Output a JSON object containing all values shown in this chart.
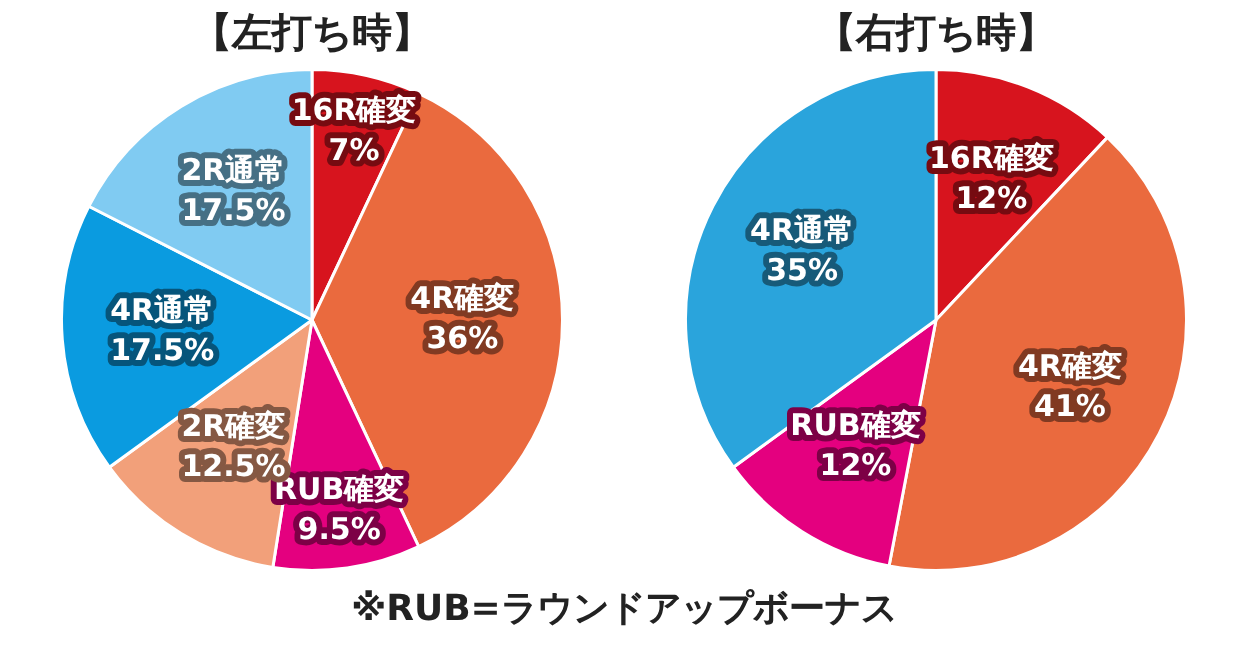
{
  "chart_data": [
    {
      "type": "pie",
      "title": "【左打ち時】",
      "categories": [
        "16R確変",
        "4R確変",
        "RUB確変",
        "2R確変",
        "4R通常",
        "2R通常"
      ],
      "values": [
        7,
        36,
        9.5,
        12.5,
        17.5,
        17.5
      ],
      "value_labels": [
        "7%",
        "36%",
        "9.5%",
        "12.5%",
        "17.5%",
        "17.5%"
      ],
      "colors": [
        "#d7141e",
        "#ea6a3e",
        "#e4007f",
        "#f2a07a",
        "#0a9be0",
        "#80cbf2"
      ],
      "legend": false,
      "annotations": [
        "※RUB=ラウンドアップボーナス"
      ]
    },
    {
      "type": "pie",
      "title": "【右打ち時】",
      "categories": [
        "16R確変",
        "4R確変",
        "RUB確変",
        "4R通常"
      ],
      "values": [
        12,
        41,
        12,
        35
      ],
      "value_labels": [
        "12%",
        "41%",
        "12%",
        "35%"
      ],
      "colors": [
        "#d7141e",
        "#ea6a3e",
        "#e4007f",
        "#2aa4dc"
      ],
      "legend": false
    }
  ]
}
